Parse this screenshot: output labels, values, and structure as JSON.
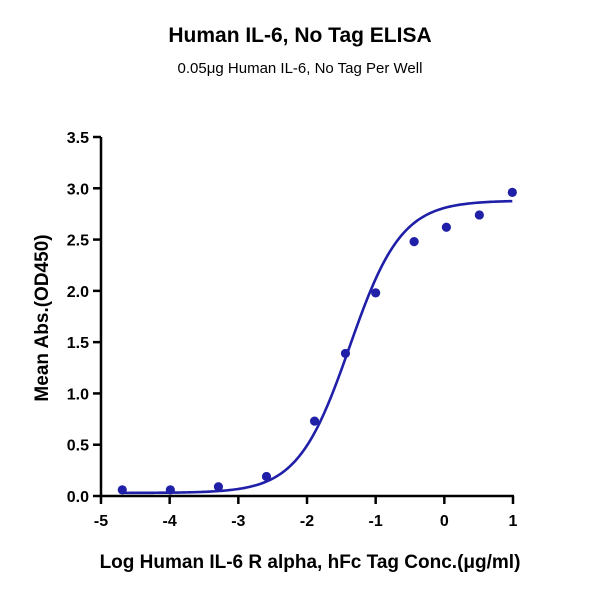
{
  "chart_data": {
    "type": "scatter",
    "title": "Human IL-6, No Tag ELISA",
    "subtitle": "0.05μg Human IL-6, No Tag Per Well",
    "xlabel": "Log Human IL-6 R alpha, hFc Tag Conc.(μg/ml)",
    "ylabel": "Mean Abs.(OD450)",
    "xlim": [
      -5,
      1
    ],
    "ylim": [
      0,
      3.5
    ],
    "xticks": [
      -5,
      -4,
      -3,
      -2,
      -1,
      0,
      1
    ],
    "yticks": [
      0,
      0.5,
      1.0,
      1.5,
      2.0,
      2.5,
      3.0,
      3.5
    ],
    "xtick_labels": [
      "-5",
      "-4",
      "-3",
      "-2",
      "-1",
      "0",
      "1"
    ],
    "ytick_labels": [
      "0.0",
      "0.5",
      "1.0",
      "1.5",
      "2.0",
      "2.5",
      "3.0",
      "3.5"
    ],
    "grid": false,
    "legend": "none",
    "series": [
      {
        "values": [
          {
            "x": -4.69,
            "y": 0.06
          },
          {
            "x": -3.99,
            "y": 0.06
          },
          {
            "x": -3.29,
            "y": 0.09
          },
          {
            "x": -2.59,
            "y": 0.19
          },
          {
            "x": -1.89,
            "y": 0.73
          },
          {
            "x": -1.44,
            "y": 1.39
          },
          {
            "x": -1.0,
            "y": 1.98
          },
          {
            "x": -0.44,
            "y": 2.48
          },
          {
            "x": 0.03,
            "y": 2.62
          },
          {
            "x": 0.51,
            "y": 2.74
          },
          {
            "x": 0.99,
            "y": 2.96
          }
        ],
        "fit": {
          "model": "4PL",
          "bottom": 0.03,
          "top": 2.88,
          "logEC50": -1.38,
          "hill": 1.15,
          "x_range": [
            -4.69,
            0.99
          ]
        },
        "color": "#1f1fa8"
      }
    ]
  }
}
